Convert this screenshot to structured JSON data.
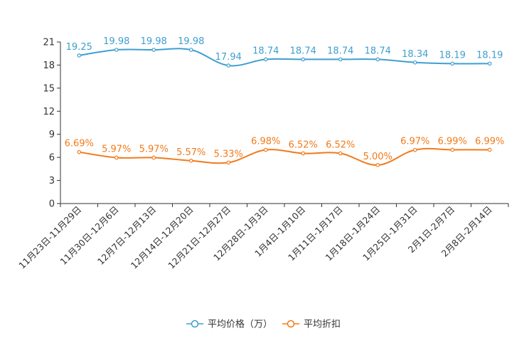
{
  "chart_data": {
    "type": "line",
    "categories": [
      "11月23日-11月29日",
      "11月30日-12月6日",
      "12月7日-12月13日",
      "12月14日-12月20日",
      "12月21日-12月27日",
      "12月28日-1月3日",
      "1月4日-1月10日",
      "1月11日-1月17日",
      "1月18日-1月24日",
      "1月25日-1月31日",
      "2月1日-2月7日",
      "2月8日-2月14日"
    ],
    "ylim": [
      0,
      21
    ],
    "yticks": [
      0,
      3,
      6,
      9,
      12,
      15,
      18,
      21
    ],
    "series": [
      {
        "name": "平均价格（万）",
        "color": "#3e9fd0",
        "values": [
          19.25,
          19.98,
          19.98,
          19.98,
          17.94,
          18.74,
          18.74,
          18.74,
          18.74,
          18.34,
          18.19,
          18.19
        ],
        "labels": [
          "19.25",
          "19.98",
          "19.98",
          "19.98",
          "17.94",
          "18.74",
          "18.74",
          "18.74",
          "18.74",
          "18.34",
          "18.19",
          "18.19"
        ]
      },
      {
        "name": "平均折扣",
        "color": "#f27a1a",
        "values": [
          6.69,
          5.97,
          5.97,
          5.57,
          5.33,
          6.98,
          6.52,
          6.52,
          5.0,
          6.97,
          6.99,
          6.99
        ],
        "labels": [
          "6.69%",
          "5.97%",
          "5.97%",
          "5.57%",
          "5.33%",
          "6.98%",
          "6.52%",
          "6.52%",
          "5.00%",
          "6.97%",
          "6.99%",
          "6.99%"
        ]
      }
    ],
    "title": "",
    "xlabel": "",
    "ylabel": "",
    "legend_position": "bottom-center"
  }
}
